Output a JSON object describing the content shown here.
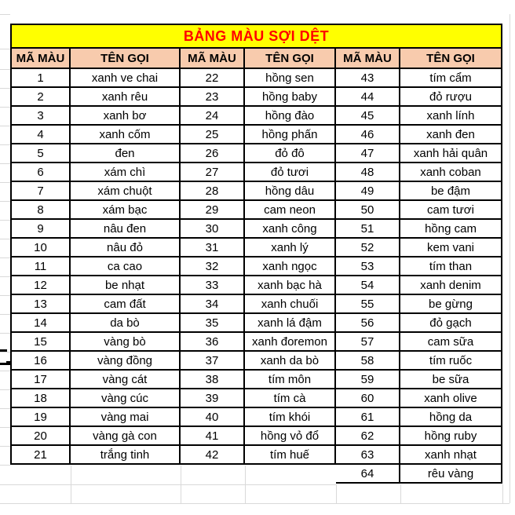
{
  "title": "BẢNG MÀU SỢI DỆT",
  "headers": {
    "code": "MÃ MÀU",
    "name": "TÊN GỌI"
  },
  "colors": {
    "title_bg": "#FFFF00",
    "title_text": "#FF0000",
    "header_bg": "#F8CBAD",
    "border": "#000000",
    "gridline": "#D9D9D9",
    "cell_bg": "#FFFFFF",
    "text": "#000000"
  },
  "groups": [
    {
      "rows": [
        {
          "code": "1",
          "name": "xanh ve chai"
        },
        {
          "code": "2",
          "name": "xanh rêu"
        },
        {
          "code": "3",
          "name": "xanh bơ"
        },
        {
          "code": "4",
          "name": "xanh cốm"
        },
        {
          "code": "5",
          "name": "đen"
        },
        {
          "code": "6",
          "name": "xám chì"
        },
        {
          "code": "7",
          "name": "xám chuột"
        },
        {
          "code": "8",
          "name": "xám bạc"
        },
        {
          "code": "9",
          "name": "nâu đen"
        },
        {
          "code": "10",
          "name": "nâu đỏ"
        },
        {
          "code": "11",
          "name": "ca cao"
        },
        {
          "code": "12",
          "name": "be nhạt"
        },
        {
          "code": "13",
          "name": "cam đất"
        },
        {
          "code": "14",
          "name": "da bò"
        },
        {
          "code": "15",
          "name": "vàng bò"
        },
        {
          "code": "16",
          "name": "vàng đồng"
        },
        {
          "code": "17",
          "name": "vàng cát"
        },
        {
          "code": "18",
          "name": "vàng cúc"
        },
        {
          "code": "19",
          "name": "vàng mai"
        },
        {
          "code": "20",
          "name": "vàng gà con"
        },
        {
          "code": "21",
          "name": "trắng tinh"
        }
      ]
    },
    {
      "rows": [
        {
          "code": "22",
          "name": "hồng sen"
        },
        {
          "code": "23",
          "name": "hồng baby"
        },
        {
          "code": "24",
          "name": "hồng đào"
        },
        {
          "code": "25",
          "name": "hồng phấn"
        },
        {
          "code": "26",
          "name": "đỏ đô"
        },
        {
          "code": "27",
          "name": "đỏ tươi"
        },
        {
          "code": "28",
          "name": "hồng dâu"
        },
        {
          "code": "29",
          "name": "cam neon"
        },
        {
          "code": "30",
          "name": "xanh công"
        },
        {
          "code": "31",
          "name": "xanh lý"
        },
        {
          "code": "32",
          "name": "xanh ngọc"
        },
        {
          "code": "33",
          "name": "xanh bạc hà"
        },
        {
          "code": "34",
          "name": "xanh chuối"
        },
        {
          "code": "35",
          "name": "xanh lá đậm"
        },
        {
          "code": "36",
          "name": "xanh đoremon"
        },
        {
          "code": "37",
          "name": "xanh da bò"
        },
        {
          "code": "38",
          "name": "tím môn"
        },
        {
          "code": "39",
          "name": "tím cà"
        },
        {
          "code": "40",
          "name": "tím khói"
        },
        {
          "code": "41",
          "name": "hồng vỏ đổ"
        },
        {
          "code": "42",
          "name": "tím huế"
        }
      ]
    },
    {
      "rows": [
        {
          "code": "43",
          "name": "tím cẩm"
        },
        {
          "code": "44",
          "name": "đỏ rượu"
        },
        {
          "code": "45",
          "name": "xanh lính"
        },
        {
          "code": "46",
          "name": "xanh đen"
        },
        {
          "code": "47",
          "name": "xanh hải quân"
        },
        {
          "code": "48",
          "name": "xanh coban"
        },
        {
          "code": "49",
          "name": "be đậm"
        },
        {
          "code": "50",
          "name": "cam tươi"
        },
        {
          "code": "51",
          "name": "hồng cam"
        },
        {
          "code": "52",
          "name": "kem vani"
        },
        {
          "code": "53",
          "name": "tím than"
        },
        {
          "code": "54",
          "name": "xanh denim"
        },
        {
          "code": "55",
          "name": "be gừng"
        },
        {
          "code": "56",
          "name": "đỏ gạch"
        },
        {
          "code": "57",
          "name": "cam sữa"
        },
        {
          "code": "58",
          "name": "tím ruốc"
        },
        {
          "code": "59",
          "name": "be sữa"
        },
        {
          "code": "60",
          "name": "xanh olive"
        },
        {
          "code": "61",
          "name": "hồng da"
        },
        {
          "code": "62",
          "name": "hồng ruby"
        },
        {
          "code": "63",
          "name": "xanh nhạt"
        },
        {
          "code": "64",
          "name": "rêu vàng"
        }
      ]
    }
  ]
}
